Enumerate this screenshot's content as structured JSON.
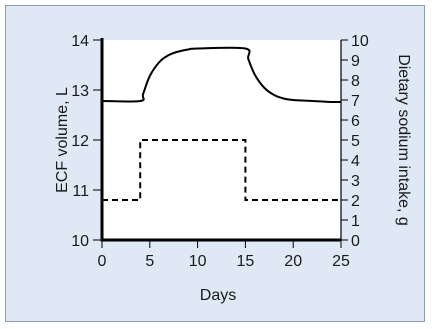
{
  "chart_data": {
    "type": "line",
    "title": "",
    "xlabel": "Days",
    "ylabel_left": "ECF volume, L",
    "ylabel_right": "Dietary sodium intake, g",
    "xlim": [
      0,
      25
    ],
    "ylim_left": [
      10,
      14
    ],
    "ylim_right": [
      0,
      10
    ],
    "x_ticks": [
      "0",
      "5",
      "10",
      "15",
      "20",
      "25"
    ],
    "y_left_ticks": [
      "10",
      "11",
      "12",
      "13",
      "14"
    ],
    "y_right_ticks": [
      "0",
      "1",
      "2",
      "3",
      "4",
      "5",
      "6",
      "7",
      "8",
      "9",
      "10"
    ],
    "grid": false,
    "series": [
      {
        "axis": "left",
        "style": "solid",
        "color": "#000000",
        "x": [
          0,
          4,
          4.3,
          5,
          6,
          7,
          8,
          9,
          10,
          15,
          15.3,
          16,
          17,
          18,
          19,
          20,
          21,
          22,
          23,
          24,
          25
        ],
        "y": [
          12.78,
          12.78,
          12.92,
          13.28,
          13.56,
          13.7,
          13.77,
          13.81,
          13.83,
          13.83,
          13.62,
          13.3,
          13.04,
          12.9,
          12.83,
          12.8,
          12.79,
          12.78,
          12.77,
          12.76,
          12.76
        ]
      },
      {
        "axis": "right",
        "style": "dashed",
        "color": "#000000",
        "x": [
          0,
          4,
          4,
          15,
          15,
          25
        ],
        "y": [
          2,
          2,
          5,
          5,
          2,
          2
        ]
      }
    ]
  }
}
